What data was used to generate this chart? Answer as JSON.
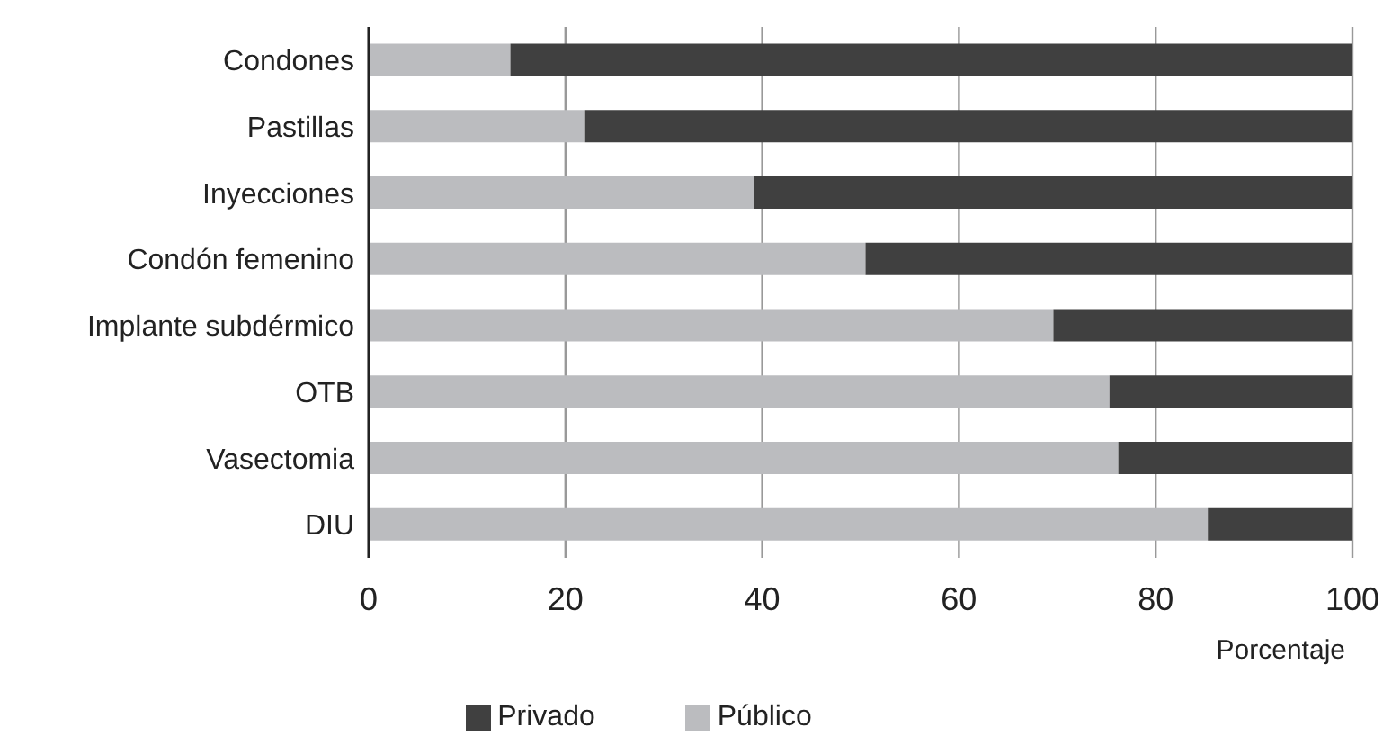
{
  "chart_data": {
    "type": "bar",
    "orientation": "horizontal",
    "stacked": true,
    "categories": [
      "Condones",
      "Pastillas",
      "Inyecciones",
      "Condón femenino",
      "Implante subdérmico",
      "OTB",
      "Vasectomia",
      "DIU"
    ],
    "series": [
      {
        "name": "Público",
        "color": "#bbbcbf",
        "values": [
          14.4,
          22.0,
          39.2,
          50.5,
          69.6,
          75.3,
          76.2,
          85.3
        ]
      },
      {
        "name": "Privado",
        "color": "#404040",
        "values": [
          85.6,
          78.0,
          60.8,
          49.5,
          30.4,
          24.7,
          23.8,
          14.7
        ]
      }
    ],
    "xlim": [
      0,
      100
    ],
    "xticks": [
      0,
      20,
      40,
      60,
      80,
      100
    ],
    "xlabel": "Porcentaje",
    "grid": "x",
    "legend": "bottom"
  }
}
